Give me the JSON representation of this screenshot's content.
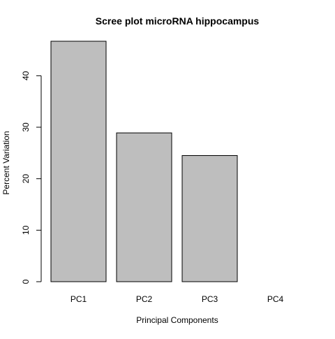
{
  "chart_data": {
    "type": "bar",
    "title": "Scree plot microRNA hippocampus",
    "xlabel": "Principal Components",
    "ylabel": "Percent Variation",
    "categories": [
      "PC1",
      "PC2",
      "PC3",
      "PC4"
    ],
    "values": [
      46.7,
      28.9,
      24.5,
      0.0
    ],
    "ylim": [
      0,
      46.7
    ],
    "yticks": [
      0,
      10,
      20,
      30,
      40
    ],
    "bar_color": "#bebebe",
    "grid": false,
    "legend": "none"
  }
}
